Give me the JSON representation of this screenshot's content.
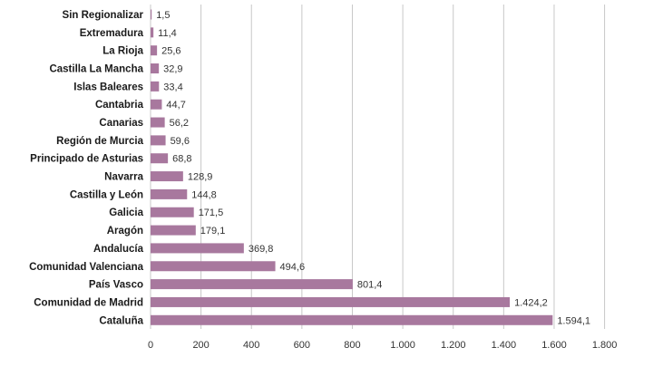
{
  "chart_data": {
    "type": "bar",
    "orientation": "horizontal",
    "categories": [
      "Sin Regionalizar",
      "Extremadura",
      "La Rioja",
      "Castilla La Mancha",
      "Islas Baleares",
      "Cantabria",
      "Canarias",
      "Región de Murcia",
      "Principado de Asturias",
      "Navarra",
      "Castilla y León",
      "Galicia",
      "Aragón",
      "Andalucía",
      "Comunidad Valenciana",
      "País Vasco",
      "Comunidad de Madrid",
      "Cataluña"
    ],
    "values": [
      1.5,
      11.4,
      25.6,
      32.9,
      33.4,
      44.7,
      56.2,
      59.6,
      68.8,
      128.9,
      144.8,
      171.5,
      179.1,
      369.8,
      494.6,
      801.4,
      1424.2,
      1594.1
    ],
    "value_labels": [
      "1,5",
      "11,4",
      "25,6",
      "32,9",
      "33,4",
      "44,7",
      "56,2",
      "59,6",
      "68,8",
      "128,9",
      "144,8",
      "171,5",
      "179,1",
      "369,8",
      "494,6",
      "801,4",
      "1.424,2",
      "1.594,1"
    ],
    "xlim": [
      0,
      1800
    ],
    "x_ticks": [
      0,
      200,
      400,
      600,
      800,
      1000,
      1200,
      1400,
      1600,
      1800
    ],
    "x_tick_labels": [
      "0",
      "200",
      "400",
      "600",
      "800",
      "1.000",
      "1.200",
      "1.400",
      "1.600",
      "1.800"
    ],
    "grid": "vertical",
    "bar_color": "#a8789e",
    "title": "",
    "xlabel": "",
    "ylabel": ""
  }
}
